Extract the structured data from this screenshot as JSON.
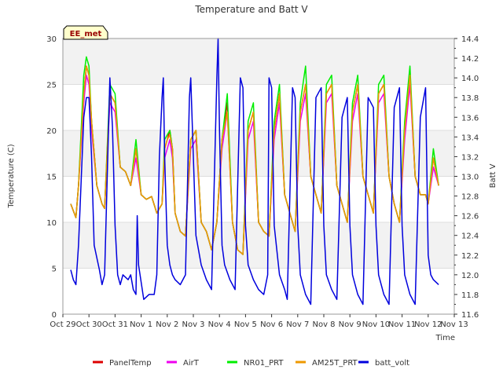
{
  "chart_data": {
    "type": "line",
    "title": "Temperature and Batt V",
    "xlabel": "Time",
    "ylabel": "Temperature (C)",
    "y2label": "Batt V",
    "badge": "EE_met",
    "xlim": [
      0,
      15
    ],
    "ylim": [
      0,
      30
    ],
    "y2lim": [
      11.6,
      14.4
    ],
    "x_tick_labels": [
      "Oct 29",
      "Oct 30",
      "Oct 31",
      "Nov 1",
      "Nov 2",
      "Nov 3",
      "Nov 4",
      "Nov 5",
      "Nov 6",
      "Nov 7",
      "Nov 8",
      "Nov 9",
      "Nov 10",
      "Nov 11",
      "Nov 12",
      "Nov 13"
    ],
    "y_ticks": [
      0,
      5,
      10,
      15,
      20,
      25,
      30
    ],
    "y2_ticks": [
      11.6,
      11.8,
      12.0,
      12.2,
      12.4,
      12.6,
      12.8,
      13.0,
      13.2,
      13.4,
      13.6,
      13.8,
      14.0,
      14.2,
      14.4
    ],
    "grid": true,
    "bands": true,
    "legend_position": "bottom",
    "colors": {
      "PanelTemp": "#dd0000",
      "AirT": "#ee00ee",
      "NR01_PRT": "#00ee00",
      "AM25T_PRT": "#ee9900",
      "batt_volt": "#0000dd"
    },
    "series": [
      {
        "name": "PanelTemp",
        "axis": "left",
        "x": [
          0.3,
          0.5,
          0.6,
          0.8,
          0.9,
          1.0,
          1.1,
          1.3,
          1.5,
          1.6,
          1.8,
          2.0,
          2.2,
          2.4,
          2.6,
          2.8,
          3.0,
          3.2,
          3.4,
          3.6,
          3.8,
          3.9,
          4.0,
          4.1,
          4.2,
          4.3,
          4.5,
          4.7,
          4.9,
          5.1,
          5.3,
          5.5,
          5.7,
          5.9,
          6.1,
          6.3,
          6.5,
          6.7,
          6.9,
          7.1,
          7.3,
          7.5,
          7.7,
          7.9,
          8.1,
          8.3,
          8.5,
          8.7,
          8.9,
          9.1,
          9.3,
          9.5,
          9.7,
          9.9,
          10.1,
          10.3,
          10.5,
          10.7,
          10.9,
          11.1,
          11.3,
          11.5,
          11.7,
          11.9,
          12.1,
          12.3,
          12.5,
          12.7,
          12.9,
          13.1,
          13.3,
          13.5,
          13.7,
          13.9,
          14.0,
          14.2,
          14.4
        ],
        "y": [
          12,
          10.5,
          14,
          24,
          27,
          26,
          21,
          14,
          12,
          11.5,
          24,
          23,
          16,
          15.5,
          14,
          18,
          13,
          12.5,
          12.8,
          11,
          12,
          18,
          19,
          20,
          18,
          11,
          9,
          8.5,
          19,
          20,
          10,
          9,
          7,
          10,
          19,
          23,
          10,
          7,
          6.5,
          20,
          22,
          10,
          9,
          8.5,
          20,
          24,
          13,
          11,
          9,
          22,
          25,
          15,
          13,
          11,
          24,
          25,
          14,
          12,
          10,
          22,
          25,
          15,
          13,
          11,
          24,
          25,
          15,
          12,
          10,
          20,
          26,
          15,
          13,
          13,
          12,
          17,
          14
        ]
      },
      {
        "name": "AirT",
        "axis": "left",
        "x": [
          0.3,
          0.5,
          0.6,
          0.8,
          0.9,
          1.0,
          1.1,
          1.3,
          1.5,
          1.6,
          1.8,
          2.0,
          2.2,
          2.4,
          2.6,
          2.8,
          3.0,
          3.2,
          3.4,
          3.6,
          3.8,
          3.9,
          4.0,
          4.1,
          4.2,
          4.3,
          4.5,
          4.7,
          4.9,
          5.1,
          5.3,
          5.5,
          5.7,
          5.9,
          6.1,
          6.3,
          6.5,
          6.7,
          6.9,
          7.1,
          7.3,
          7.5,
          7.7,
          7.9,
          8.1,
          8.3,
          8.5,
          8.7,
          8.9,
          9.1,
          9.3,
          9.5,
          9.7,
          9.9,
          10.1,
          10.3,
          10.5,
          10.7,
          10.9,
          11.1,
          11.3,
          11.5,
          11.7,
          11.9,
          12.1,
          12.3,
          12.5,
          12.7,
          12.9,
          13.1,
          13.3,
          13.5,
          13.7,
          13.9,
          14.0,
          14.2,
          14.4
        ],
        "y": [
          12,
          10.5,
          14,
          23,
          26,
          25,
          20,
          14,
          12,
          11.5,
          23,
          22,
          16,
          15.5,
          14,
          17,
          13,
          12.5,
          12.8,
          11,
          12,
          17,
          18,
          19,
          17,
          11,
          9,
          8.5,
          18,
          19,
          10,
          9,
          7,
          10,
          18,
          22,
          10,
          7,
          6.5,
          19,
          21,
          10,
          9,
          8.5,
          19,
          23,
          13,
          11,
          9,
          21,
          24,
          15,
          13,
          11,
          23,
          24,
          14,
          12,
          10,
          21,
          24,
          15,
          13,
          11,
          23,
          24,
          15,
          12,
          10,
          19,
          25,
          15,
          13,
          13,
          12,
          16,
          14
        ]
      },
      {
        "name": "NR01_PRT",
        "axis": "left",
        "x": [
          0.3,
          0.5,
          0.6,
          0.8,
          0.9,
          1.0,
          1.1,
          1.3,
          1.5,
          1.6,
          1.8,
          2.0,
          2.2,
          2.4,
          2.6,
          2.8,
          3.0,
          3.2,
          3.4,
          3.6,
          3.8,
          3.9,
          4.0,
          4.1,
          4.2,
          4.3,
          4.5,
          4.7,
          4.9,
          5.1,
          5.3,
          5.5,
          5.7,
          5.9,
          6.1,
          6.3,
          6.5,
          6.7,
          6.9,
          7.1,
          7.3,
          7.5,
          7.7,
          7.9,
          8.1,
          8.3,
          8.5,
          8.7,
          8.9,
          9.1,
          9.3,
          9.5,
          9.7,
          9.9,
          10.1,
          10.3,
          10.5,
          10.7,
          10.9,
          11.1,
          11.3,
          11.5,
          11.7,
          11.9,
          12.1,
          12.3,
          12.5,
          12.7,
          12.9,
          13.1,
          13.3,
          13.5,
          13.7,
          13.9,
          14.0,
          14.2,
          14.4
        ],
        "y": [
          12,
          10.5,
          14,
          26,
          28,
          27,
          21,
          14,
          12,
          11.5,
          25,
          24,
          16,
          15.5,
          14,
          19,
          13,
          12.5,
          12.8,
          11,
          12,
          19,
          19.5,
          20,
          18,
          11,
          9,
          8.5,
          19,
          20,
          10,
          9,
          7,
          10,
          19,
          24,
          10,
          7,
          6.5,
          21,
          23,
          10,
          9,
          8.5,
          21,
          25,
          13,
          11,
          9,
          23,
          27,
          15,
          13,
          11,
          25,
          26,
          14,
          12,
          10,
          23,
          26,
          15,
          13,
          11,
          25,
          26,
          15,
          12,
          10,
          21,
          27,
          15,
          13,
          13,
          12,
          18,
          14
        ]
      },
      {
        "name": "AM25T_PRT",
        "axis": "left",
        "x": [
          0.3,
          0.5,
          0.6,
          0.8,
          0.9,
          1.0,
          1.1,
          1.3,
          1.5,
          1.6,
          1.8,
          2.0,
          2.2,
          2.4,
          2.6,
          2.8,
          3.0,
          3.2,
          3.4,
          3.6,
          3.8,
          3.9,
          4.0,
          4.1,
          4.2,
          4.3,
          4.5,
          4.7,
          4.9,
          5.1,
          5.3,
          5.5,
          5.7,
          5.9,
          6.1,
          6.3,
          6.5,
          6.7,
          6.9,
          7.1,
          7.3,
          7.5,
          7.7,
          7.9,
          8.1,
          8.3,
          8.5,
          8.7,
          8.9,
          9.1,
          9.3,
          9.5,
          9.7,
          9.9,
          10.1,
          10.3,
          10.5,
          10.7,
          10.9,
          11.1,
          11.3,
          11.5,
          11.7,
          11.9,
          12.1,
          12.3,
          12.5,
          12.7,
          12.9,
          13.1,
          13.3,
          13.5,
          13.7,
          13.9,
          14.0,
          14.2,
          14.4
        ],
        "y": [
          12,
          10.5,
          14,
          24,
          27,
          26,
          21,
          14,
          12,
          11.5,
          24,
          23,
          16,
          15.5,
          14,
          18,
          13,
          12.5,
          12.8,
          11,
          12,
          18,
          19,
          19.5,
          18,
          11,
          9,
          8.5,
          19,
          20,
          10,
          9,
          7,
          10,
          19,
          22,
          10,
          7,
          6.5,
          20,
          22,
          10,
          9,
          8.5,
          20,
          24,
          13,
          11,
          9,
          22,
          25,
          15,
          13,
          11,
          24,
          25,
          14,
          12,
          10,
          22,
          25,
          15,
          13,
          11,
          24,
          25,
          15,
          12,
          10,
          20,
          26,
          15,
          13,
          13,
          12,
          17,
          14
        ]
      },
      {
        "name": "batt_volt",
        "axis": "right",
        "x": [
          0.3,
          0.4,
          0.5,
          0.6,
          0.8,
          0.9,
          1.0,
          1.1,
          1.2,
          1.4,
          1.5,
          1.6,
          1.8,
          1.9,
          2.0,
          2.1,
          2.2,
          2.3,
          2.5,
          2.6,
          2.7,
          2.8,
          2.85,
          2.9,
          3.1,
          3.3,
          3.5,
          3.6,
          3.7,
          3.8,
          3.85,
          3.9,
          4.0,
          4.1,
          4.2,
          4.3,
          4.5,
          4.7,
          4.85,
          4.9,
          5.0,
          5.1,
          5.3,
          5.5,
          5.7,
          5.9,
          5.95,
          6.0,
          6.1,
          6.2,
          6.4,
          6.6,
          6.8,
          6.9,
          7.0,
          7.1,
          7.3,
          7.5,
          7.7,
          7.85,
          7.9,
          8.0,
          8.1,
          8.3,
          8.5,
          8.6,
          8.8,
          8.9,
          9.0,
          9.1,
          9.3,
          9.5,
          9.7,
          9.9,
          10.0,
          10.1,
          10.3,
          10.5,
          10.7,
          10.9,
          11.0,
          11.1,
          11.3,
          11.5,
          11.7,
          11.9,
          12.0,
          12.1,
          12.3,
          12.5,
          12.7,
          12.9,
          13.0,
          13.1,
          13.3,
          13.5,
          13.7,
          13.9,
          14.0,
          14.1,
          14.2,
          14.4
        ],
        "y": [
          12.05,
          11.95,
          11.9,
          12.3,
          13.6,
          13.8,
          13.8,
          13.2,
          12.3,
          12.05,
          11.9,
          12.0,
          14.0,
          13.5,
          12.5,
          12.0,
          11.9,
          12.0,
          11.95,
          12.0,
          11.85,
          11.8,
          12.6,
          12.1,
          11.75,
          11.8,
          11.8,
          12.0,
          13.2,
          13.8,
          14.0,
          13.2,
          12.3,
          12.1,
          12.0,
          11.95,
          11.9,
          12.0,
          13.8,
          14.0,
          13.2,
          12.4,
          12.1,
          11.95,
          11.85,
          14.0,
          14.4,
          13.5,
          12.3,
          12.1,
          11.95,
          11.85,
          14.0,
          13.9,
          12.5,
          12.1,
          11.95,
          11.85,
          11.8,
          12.0,
          14.0,
          13.9,
          12.5,
          12.0,
          11.85,
          11.75,
          13.9,
          13.8,
          12.5,
          12.0,
          11.8,
          11.7,
          13.8,
          13.9,
          12.5,
          12.0,
          11.85,
          11.75,
          13.6,
          13.8,
          12.5,
          12.0,
          11.8,
          11.7,
          13.8,
          13.7,
          12.5,
          12.0,
          11.8,
          11.7,
          13.7,
          13.9,
          12.5,
          12.0,
          11.8,
          11.7,
          13.6,
          13.9,
          12.2,
          12.0,
          11.95,
          11.9
        ]
      }
    ]
  }
}
